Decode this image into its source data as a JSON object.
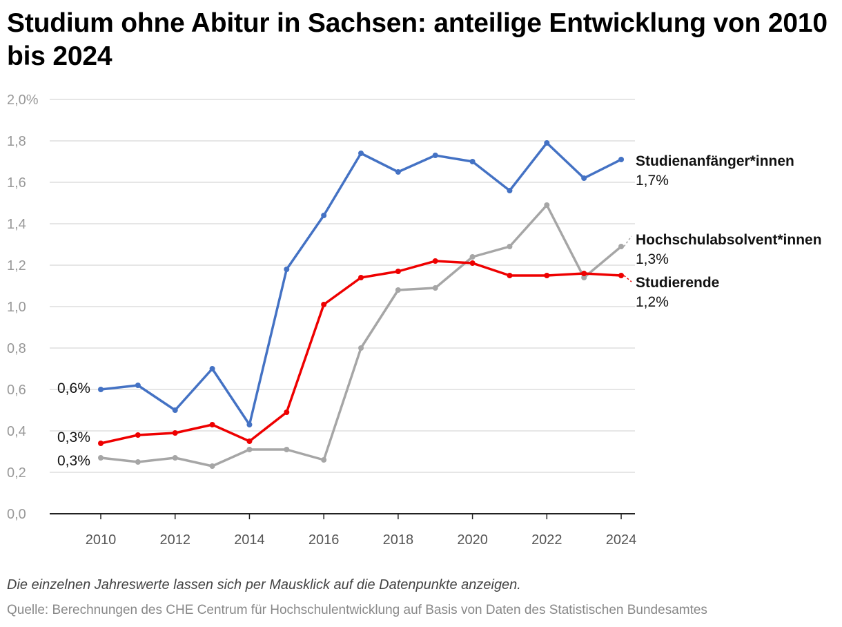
{
  "chart_data": {
    "type": "line",
    "title": "Studium ohne Abitur in Sachsen: anteilige Entwicklung von 2010 bis 2024",
    "x": [
      2010,
      2011,
      2012,
      2013,
      2014,
      2015,
      2016,
      2017,
      2018,
      2019,
      2020,
      2021,
      2022,
      2023,
      2024
    ],
    "xticks": [
      "2010",
      "2012",
      "2014",
      "2016",
      "2018",
      "2020",
      "2022",
      "2024"
    ],
    "yticks": [
      "0,0",
      "0,2",
      "0,4",
      "0,6",
      "0,8",
      "1,0",
      "1,2",
      "1,4",
      "1,6",
      "1,8",
      "2,0%"
    ],
    "ylim": [
      0,
      2.0
    ],
    "series": [
      {
        "name": "Studienanfänger*innen",
        "color": "#4472c4",
        "values": [
          0.6,
          0.62,
          0.5,
          0.7,
          0.43,
          1.18,
          1.44,
          1.74,
          1.65,
          1.73,
          1.7,
          1.56,
          1.79,
          1.62,
          1.71
        ],
        "start_label": "0,6%",
        "end_label": "1,7%"
      },
      {
        "name": "Studierende",
        "color": "#ee0000",
        "values": [
          0.34,
          0.38,
          0.39,
          0.43,
          0.35,
          0.49,
          1.01,
          1.14,
          1.17,
          1.22,
          1.21,
          1.15,
          1.15,
          1.16,
          1.15
        ],
        "start_label": "0,3%",
        "end_label": "1,2%"
      },
      {
        "name": "Hochschulabsolvent*innen",
        "color": "#a6a6a6",
        "values": [
          0.27,
          0.25,
          0.27,
          0.23,
          0.31,
          0.31,
          0.26,
          0.8,
          1.08,
          1.09,
          1.24,
          1.29,
          1.49,
          1.14,
          1.29
        ],
        "start_label": "0,3%",
        "end_label": "1,3%"
      }
    ]
  },
  "note": "Die einzelnen Jahreswerte lassen sich per Mausklick auf die Datenpunkte anzeigen.",
  "source": "Quelle: Berechnungen des CHE Centrum für Hochschulentwicklung auf Basis von Daten des Statistischen Bundesamtes"
}
